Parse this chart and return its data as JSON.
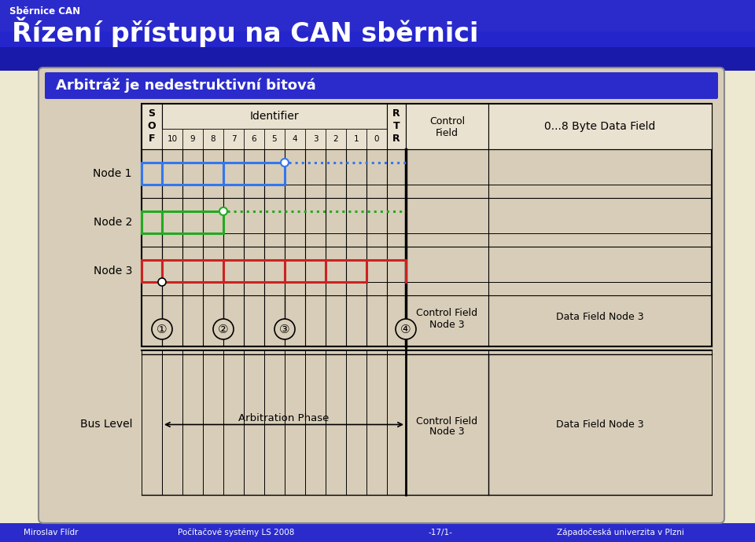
{
  "title_small": "Sběrnice CAN",
  "title_large": "Řízení přístupu na CAN sběrnici",
  "subtitle": "Arbitráž je nedestruktivní bitová",
  "header_bg": "#2B2BCC",
  "content_bg": "#D8CDB8",
  "outer_bg": "#EDE8D0",
  "footer_left": "Miroslav Flídr",
  "footer_mid1": "Počítačové systémy LS 2008",
  "footer_mid2": "-17/1-",
  "footer_right": "Západočeská univerzita v Plzni",
  "identifier_bits": [
    "10",
    "9",
    "8",
    "7",
    "6",
    "5",
    "4",
    "3",
    "2",
    "1",
    "0"
  ],
  "node1_color": "#3377EE",
  "node2_color": "#22AA22",
  "node3_color": "#CC2222",
  "markers": [
    "①",
    "②",
    "③",
    "④"
  ]
}
